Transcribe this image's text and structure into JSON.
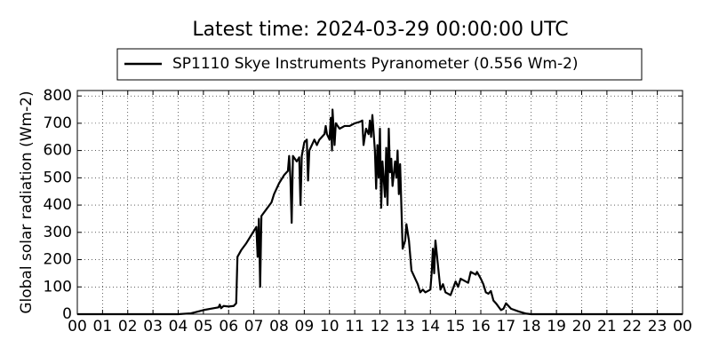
{
  "chart_data": {
    "type": "line",
    "title": "Latest time: 2024-03-29 00:00:00 UTC",
    "y_label": "Global solar radiation (Wm-2)",
    "grid": true,
    "legend": "top",
    "x": [
      0,
      4.0,
      4.5,
      4.8,
      5.0,
      5.3,
      5.6,
      5.65,
      5.7,
      5.8,
      6.0,
      6.2,
      6.3,
      6.35,
      6.5,
      6.7,
      6.9,
      7.1,
      7.15,
      7.2,
      7.25,
      7.3,
      7.5,
      7.7,
      7.8,
      8.0,
      8.2,
      8.35,
      8.4,
      8.45,
      8.5,
      8.55,
      8.7,
      8.8,
      8.85,
      8.9,
      9.0,
      9.1,
      9.15,
      9.2,
      9.4,
      9.5,
      9.6,
      9.8,
      9.85,
      9.9,
      10.0,
      10.05,
      10.1,
      10.12,
      10.2,
      10.25,
      10.4,
      10.6,
      10.8,
      11.0,
      11.2,
      11.3,
      11.35,
      11.45,
      11.55,
      11.6,
      11.65,
      11.7,
      11.8,
      11.85,
      11.9,
      11.95,
      12.0,
      12.05,
      12.1,
      12.2,
      12.25,
      12.3,
      12.35,
      12.4,
      12.45,
      12.5,
      12.6,
      12.65,
      12.7,
      12.75,
      12.8,
      12.9,
      13.0,
      13.05,
      13.15,
      13.25,
      13.4,
      13.5,
      13.6,
      13.7,
      13.8,
      14.0,
      14.05,
      14.1,
      14.15,
      14.2,
      14.3,
      14.4,
      14.5,
      14.6,
      14.7,
      14.8,
      15.0,
      15.1,
      15.2,
      15.5,
      15.6,
      15.8,
      15.85,
      16.0,
      16.1,
      16.2,
      16.3,
      16.4,
      16.5,
      16.6,
      16.8,
      16.9,
      17.0,
      17.2,
      17.5,
      17.8,
      18.0,
      24.0
    ],
    "series": [
      {
        "name": "SP1110 Skye Instruments Pyranometer (0.556 Wm-2)",
        "color": "#000000",
        "values": [
          0,
          0,
          3,
          10,
          15,
          20,
          25,
          35,
          22,
          30,
          28,
          30,
          40,
          210,
          235,
          260,
          290,
          320,
          210,
          350,
          100,
          360,
          385,
          410,
          440,
          480,
          510,
          525,
          580,
          500,
          335,
          580,
          560,
          575,
          400,
          580,
          630,
          640,
          490,
          600,
          640,
          620,
          640,
          660,
          690,
          660,
          640,
          720,
          600,
          750,
          620,
          700,
          680,
          690,
          690,
          700,
          705,
          710,
          620,
          680,
          660,
          710,
          650,
          730,
          600,
          460,
          620,
          500,
          680,
          390,
          560,
          430,
          610,
          400,
          680,
          520,
          570,
          470,
          560,
          500,
          600,
          440,
          550,
          240,
          270,
          330,
          270,
          160,
          130,
          110,
          80,
          90,
          80,
          90,
          150,
          240,
          150,
          270,
          180,
          90,
          110,
          80,
          75,
          70,
          120,
          100,
          130,
          115,
          155,
          145,
          155,
          130,
          110,
          80,
          75,
          85,
          50,
          40,
          15,
          20,
          40,
          20,
          10,
          2,
          0,
          0
        ]
      }
    ],
    "xlim": [
      0,
      24
    ],
    "xticks": [
      {
        "value": 0,
        "label": "00"
      },
      {
        "value": 1,
        "label": "01"
      },
      {
        "value": 2,
        "label": "02"
      },
      {
        "value": 3,
        "label": "03"
      },
      {
        "value": 4,
        "label": "04"
      },
      {
        "value": 5,
        "label": "05"
      },
      {
        "value": 6,
        "label": "06"
      },
      {
        "value": 7,
        "label": "07"
      },
      {
        "value": 8,
        "label": "08"
      },
      {
        "value": 9,
        "label": "09"
      },
      10,
      11,
      12,
      13,
      14,
      15,
      16,
      17,
      18,
      19,
      20,
      21,
      22,
      23,
      {
        "value": 24,
        "label": "00"
      }
    ],
    "ylim": [
      0,
      820
    ],
    "yticks": [
      0,
      100,
      200,
      300,
      400,
      500,
      600,
      700,
      800
    ]
  }
}
